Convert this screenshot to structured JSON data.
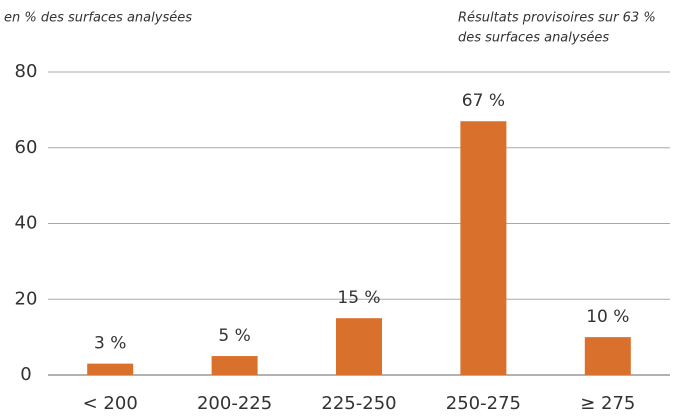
{
  "chart_data": {
    "type": "bar",
    "subtitle": "en % des surfaces analysées",
    "annotation": [
      "Résultats provisoires sur 63 %",
      "des surfaces analysées"
    ],
    "categories": [
      "< 200",
      "200-225",
      "225-250",
      "250-275",
      "≥ 275"
    ],
    "values": [
      3,
      5,
      15,
      67,
      10
    ],
    "value_labels": [
      "3 %",
      "5 %",
      "15 %",
      "67 %",
      "10 %"
    ],
    "color": "#d9702b",
    "ylim": [
      0,
      80
    ],
    "yticks": [
      0,
      20,
      40,
      60,
      80
    ],
    "grid": true
  }
}
